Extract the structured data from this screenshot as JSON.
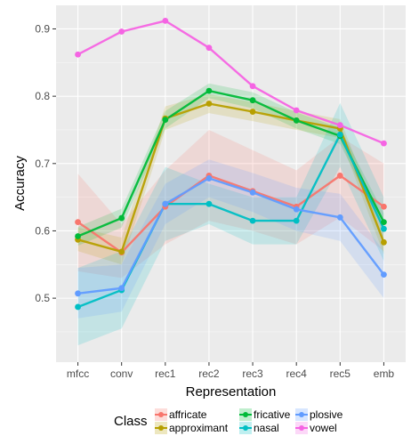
{
  "chart_data": {
    "type": "line",
    "title": "",
    "xlabel": "Representation",
    "ylabel": "Accuracy",
    "categories": [
      "mfcc",
      "conv",
      "rec1",
      "rec2",
      "rec3",
      "rec4",
      "rec5",
      "emb"
    ],
    "ylim": [
      0.405,
      0.935
    ],
    "yticks": [
      0.5,
      0.6,
      0.7,
      0.8,
      0.9
    ],
    "ytick_labels": [
      "0.5",
      "0.6",
      "0.7",
      "0.8",
      "0.9"
    ],
    "grid": true,
    "legend": {
      "title": "Class",
      "position": "bottom"
    },
    "series": [
      {
        "name": "affricate",
        "color": "#F8766D",
        "values": [
          0.613,
          0.568,
          0.636,
          0.682,
          0.659,
          0.636,
          0.682,
          0.636
        ],
        "lower": [
          0.54,
          0.53,
          0.58,
          0.615,
          0.6,
          0.58,
          0.62,
          0.57
        ],
        "upper": [
          0.685,
          0.61,
          0.69,
          0.75,
          0.72,
          0.69,
          0.74,
          0.7
        ]
      },
      {
        "name": "approximant",
        "color": "#B79F00",
        "values": [
          0.587,
          0.569,
          0.767,
          0.789,
          0.777,
          0.764,
          0.752,
          0.583
        ],
        "lower": [
          0.57,
          0.55,
          0.75,
          0.775,
          0.763,
          0.75,
          0.738,
          0.565
        ],
        "upper": [
          0.605,
          0.59,
          0.785,
          0.803,
          0.791,
          0.778,
          0.766,
          0.6
        ]
      },
      {
        "name": "fricative",
        "color": "#00BA38",
        "values": [
          0.592,
          0.619,
          0.765,
          0.808,
          0.794,
          0.764,
          0.741,
          0.613
        ],
        "lower": [
          0.578,
          0.605,
          0.752,
          0.797,
          0.782,
          0.752,
          0.729,
          0.6
        ],
        "upper": [
          0.606,
          0.633,
          0.778,
          0.819,
          0.806,
          0.776,
          0.753,
          0.626
        ]
      },
      {
        "name": "nasal",
        "color": "#00BFC4",
        "values": [
          0.487,
          0.512,
          0.64,
          0.64,
          0.615,
          0.615,
          0.743,
          0.603
        ],
        "lower": [
          0.43,
          0.455,
          0.585,
          0.61,
          0.58,
          0.58,
          0.695,
          0.555
        ],
        "upper": [
          0.545,
          0.57,
          0.695,
          0.67,
          0.65,
          0.65,
          0.79,
          0.65
        ]
      },
      {
        "name": "plosive",
        "color": "#619CFF",
        "values": [
          0.507,
          0.515,
          0.64,
          0.678,
          0.657,
          0.632,
          0.62,
          0.535
        ],
        "lower": [
          0.47,
          0.48,
          0.61,
          0.65,
          0.628,
          0.6,
          0.585,
          0.5
        ],
        "upper": [
          0.545,
          0.55,
          0.67,
          0.706,
          0.686,
          0.664,
          0.655,
          0.57
        ]
      },
      {
        "name": "vowel",
        "color": "#F564E3",
        "values": [
          0.862,
          0.896,
          0.912,
          0.872,
          0.815,
          0.779,
          0.757,
          0.73
        ],
        "lower": [
          0.862,
          0.896,
          0.912,
          0.872,
          0.815,
          0.779,
          0.757,
          0.73
        ],
        "upper": [
          0.862,
          0.896,
          0.912,
          0.872,
          0.815,
          0.779,
          0.757,
          0.73
        ]
      }
    ],
    "legend_order": [
      "affricate",
      "approximant",
      "fricative",
      "nasal",
      "plosive",
      "vowel"
    ]
  }
}
